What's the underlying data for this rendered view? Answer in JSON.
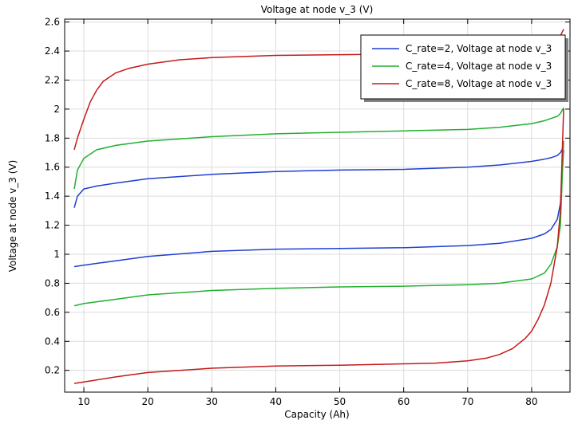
{
  "chart_data": {
    "type": "line",
    "title": "Voltage at node v_3 (V)",
    "xlabel": "Capacity (Ah)",
    "ylabel": "Voltage at node v_3 (V)",
    "xlim": [
      7,
      86
    ],
    "ylim": [
      0.05,
      2.62
    ],
    "xticks": [
      "10",
      "20",
      "30",
      "40",
      "50",
      "60",
      "70",
      "80"
    ],
    "yticks": [
      "0.2",
      "0.4",
      "0.6",
      "0.8",
      "1",
      "1.2",
      "1.4",
      "1.6",
      "1.8",
      "2",
      "2.2",
      "2.4",
      "2.6"
    ],
    "grid": true,
    "legend_position": "top-right",
    "series": [
      {
        "name": "C_rate=2, Voltage at node v_3",
        "color": "#1f3fcf",
        "branches": [
          {
            "x": [
              8.5,
              9,
              10,
              12,
              15,
              20,
              30,
              40,
              50,
              60,
              70,
              75,
              80,
              82,
              83,
              84,
              84.5,
              85
            ],
            "y": [
              1.32,
              1.4,
              1.45,
              1.47,
              1.49,
              1.52,
              1.55,
              1.57,
              1.58,
              1.585,
              1.6,
              1.615,
              1.64,
              1.655,
              1.665,
              1.68,
              1.7,
              1.74
            ]
          },
          {
            "x": [
              8.5,
              10,
              15,
              20,
              30,
              40,
              50,
              60,
              70,
              75,
              80,
              82,
              83,
              84,
              84.5,
              85
            ],
            "y": [
              0.915,
              0.925,
              0.955,
              0.985,
              1.02,
              1.035,
              1.04,
              1.045,
              1.06,
              1.075,
              1.11,
              1.14,
              1.17,
              1.24,
              1.35,
              1.72
            ]
          }
        ]
      },
      {
        "name": "C_rate=4, Voltage at node v_3",
        "color": "#22b02e",
        "branches": [
          {
            "x": [
              8.5,
              9,
              10,
              12,
              15,
              20,
              30,
              40,
              50,
              60,
              70,
              75,
              80,
              82,
              83,
              84,
              84.5,
              85
            ],
            "y": [
              1.45,
              1.58,
              1.66,
              1.72,
              1.75,
              1.78,
              1.81,
              1.83,
              1.84,
              1.85,
              1.86,
              1.875,
              1.9,
              1.92,
              1.935,
              1.95,
              1.97,
              2.01
            ]
          },
          {
            "x": [
              8.5,
              10,
              15,
              20,
              30,
              40,
              50,
              60,
              70,
              75,
              80,
              82,
              83,
              84,
              84.5,
              85
            ],
            "y": [
              0.645,
              0.66,
              0.69,
              0.72,
              0.75,
              0.765,
              0.775,
              0.78,
              0.79,
              0.8,
              0.83,
              0.87,
              0.93,
              1.05,
              1.2,
              1.78
            ]
          }
        ]
      },
      {
        "name": "C_rate=8, Voltage at node v_3",
        "color": "#c41a1a",
        "branches": [
          {
            "x": [
              8.5,
              9,
              10,
              11,
              12,
              13,
              15,
              17,
              20,
              25,
              30,
              40,
              50,
              60,
              70,
              75,
              80,
              82,
              84,
              85
            ],
            "y": [
              1.72,
              1.8,
              1.93,
              2.05,
              2.13,
              2.19,
              2.25,
              2.28,
              2.31,
              2.34,
              2.355,
              2.37,
              2.375,
              2.38,
              2.39,
              2.4,
              2.42,
              2.43,
              2.46,
              2.55
            ]
          },
          {
            "x": [
              8.5,
              10,
              15,
              20,
              30,
              40,
              50,
              60,
              65,
              70,
              73,
              75,
              77,
              79,
              80,
              81,
              82,
              83,
              84,
              84.5,
              85
            ],
            "y": [
              0.11,
              0.12,
              0.155,
              0.185,
              0.215,
              0.23,
              0.235,
              0.245,
              0.25,
              0.265,
              0.285,
              0.31,
              0.35,
              0.42,
              0.47,
              0.55,
              0.65,
              0.8,
              1.05,
              1.3,
              2.0
            ]
          }
        ]
      }
    ]
  }
}
